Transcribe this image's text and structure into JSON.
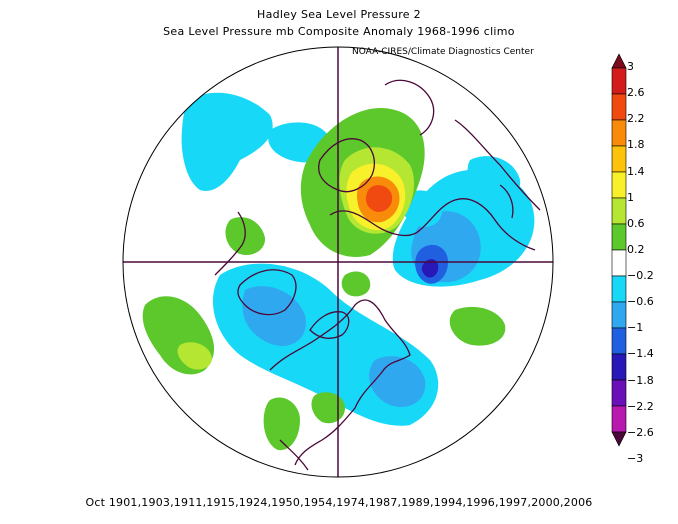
{
  "header": {
    "title": "Hadley Sea Level Pressure 2",
    "subtitle": "Sea Level Pressure mb Composite Anomaly 1968-1996 climo",
    "credit": "NOAA-CIRES/Climate Diagnostics Center"
  },
  "footer": {
    "years": "Oct 1901,1903,1911,1915,1924,1950,1954,1974,1987,1989,1994,1996,1997,2000,2006"
  },
  "colorbar": {
    "labels": [
      "3",
      "2.6",
      "2.2",
      "1.8",
      "1.4",
      "1",
      "0.6",
      "0.2",
      "−0.2",
      "−0.6",
      "−1",
      "−1.4",
      "−1.8",
      "−2.2",
      "−2.6",
      "−3"
    ],
    "colors": [
      "#7a0a1e",
      "#d21c1c",
      "#f04a10",
      "#f88b0a",
      "#fcc20c",
      "#f8f02a",
      "#b4e632",
      "#5cc82c",
      "#ffffff",
      "#18d8f8",
      "#30a8f0",
      "#2060e0",
      "#2818b8",
      "#6a10b8",
      "#b81ab0",
      "#4a0838"
    ]
  },
  "map": {
    "projection": "north-polar-stereographic",
    "colors": {
      "outline": "#000000",
      "coast": "#4a0838",
      "grid": "#4a0838"
    }
  }
}
